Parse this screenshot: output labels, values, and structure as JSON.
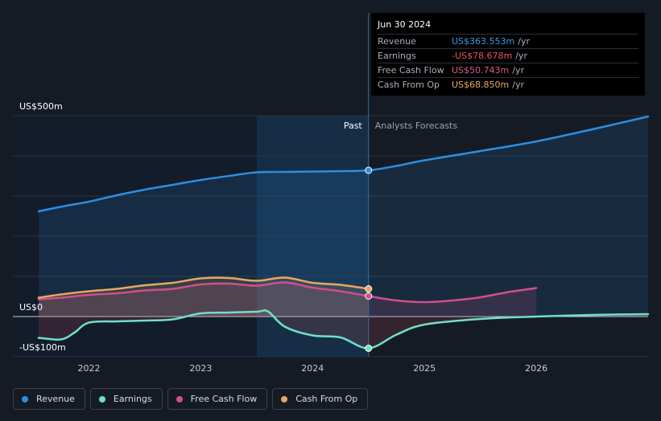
{
  "tooltip": {
    "date": "Jun 30 2024",
    "rows": [
      {
        "label": "Revenue",
        "value": "US$363.553m",
        "unit": "/yr",
        "color": "#3b9be6"
      },
      {
        "label": "Earnings",
        "value": "-US$78.678m",
        "unit": "/yr",
        "color": "#e9545c"
      },
      {
        "label": "Free Cash Flow",
        "value": "US$50.743m",
        "unit": "/yr",
        "color": "#d85a91"
      },
      {
        "label": "Cash From Op",
        "value": "US$68.850m",
        "unit": "/yr",
        "color": "#e8a75f"
      }
    ]
  },
  "legend": [
    {
      "label": "Revenue",
      "color": "#2d8ee0"
    },
    {
      "label": "Earnings",
      "color": "#6fe0c8"
    },
    {
      "label": "Free Cash Flow",
      "color": "#d14f8b"
    },
    {
      "label": "Cash From Op",
      "color": "#e8a75f"
    }
  ],
  "chart_data": {
    "type": "line",
    "title": "",
    "xlabel": "",
    "ylabel": "",
    "ylim": [
      -100,
      500
    ],
    "xlim": [
      2021.55,
      2027.0
    ],
    "y_tick_labels": [
      {
        "value": 500,
        "label": "US$500m"
      },
      {
        "value": 0,
        "label": "US$0"
      },
      {
        "value": -100,
        "label": "-US$100m"
      }
    ],
    "x_ticks": [
      2022,
      2023,
      2024,
      2025,
      2026
    ],
    "past_label": "Past",
    "forecast_label": "Analysts Forecasts",
    "past_end": 2024.5,
    "highlight_start": 2023.5,
    "series": [
      {
        "name": "Revenue",
        "color": "#2d8ee0",
        "points": [
          [
            2021.55,
            262
          ],
          [
            2021.8,
            276
          ],
          [
            2022.0,
            286
          ],
          [
            2022.25,
            302
          ],
          [
            2022.5,
            316
          ],
          [
            2022.75,
            328
          ],
          [
            2023.0,
            340
          ],
          [
            2023.25,
            350
          ],
          [
            2023.5,
            359
          ],
          [
            2023.75,
            360
          ],
          [
            2024.0,
            361
          ],
          [
            2024.25,
            362
          ],
          [
            2024.5,
            364
          ],
          [
            2024.75,
            375
          ],
          [
            2025.0,
            389
          ],
          [
            2025.5,
            412
          ],
          [
            2026.0,
            436
          ],
          [
            2026.5,
            466
          ],
          [
            2027.0,
            498
          ]
        ]
      },
      {
        "name": "Earnings",
        "color": "#6fe0c8",
        "points": [
          [
            2021.55,
            -53
          ],
          [
            2021.75,
            -57
          ],
          [
            2021.87,
            -40
          ],
          [
            2022.0,
            -15
          ],
          [
            2022.25,
            -12
          ],
          [
            2022.5,
            -10
          ],
          [
            2022.75,
            -7
          ],
          [
            2023.0,
            8
          ],
          [
            2023.25,
            10
          ],
          [
            2023.5,
            12
          ],
          [
            2023.6,
            13
          ],
          [
            2023.75,
            -25
          ],
          [
            2024.0,
            -47
          ],
          [
            2024.25,
            -52
          ],
          [
            2024.5,
            -79
          ],
          [
            2024.75,
            -45
          ],
          [
            2025.0,
            -20
          ],
          [
            2025.5,
            -6
          ],
          [
            2026.0,
            0
          ],
          [
            2026.5,
            4
          ],
          [
            2027.0,
            6
          ]
        ]
      },
      {
        "name": "Free Cash Flow",
        "color": "#d14f8b",
        "points": [
          [
            2021.55,
            43
          ],
          [
            2021.75,
            47
          ],
          [
            2022.0,
            54
          ],
          [
            2022.25,
            58
          ],
          [
            2022.5,
            65
          ],
          [
            2022.75,
            69
          ],
          [
            2023.0,
            80
          ],
          [
            2023.25,
            82
          ],
          [
            2023.5,
            77
          ],
          [
            2023.75,
            85
          ],
          [
            2024.0,
            72
          ],
          [
            2024.25,
            63
          ],
          [
            2024.5,
            51
          ],
          [
            2024.75,
            40
          ],
          [
            2025.0,
            36
          ],
          [
            2025.25,
            40
          ],
          [
            2025.5,
            48
          ],
          [
            2025.75,
            61
          ],
          [
            2026.0,
            71
          ]
        ]
      },
      {
        "name": "Cash From Op",
        "color": "#e8a75f",
        "points": [
          [
            2021.55,
            47
          ],
          [
            2021.75,
            55
          ],
          [
            2022.0,
            63
          ],
          [
            2022.25,
            69
          ],
          [
            2022.5,
            78
          ],
          [
            2022.75,
            84
          ],
          [
            2023.0,
            95
          ],
          [
            2023.25,
            96
          ],
          [
            2023.5,
            89
          ],
          [
            2023.75,
            97
          ],
          [
            2024.0,
            84
          ],
          [
            2024.25,
            79
          ],
          [
            2024.5,
            69
          ]
        ]
      }
    ]
  }
}
